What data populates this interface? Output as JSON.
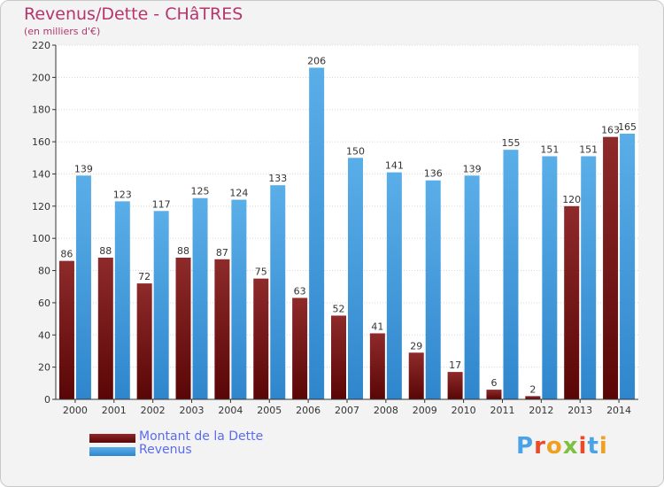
{
  "chart_data": {
    "type": "bar",
    "title": "Revenus/Dette - CHâTRES",
    "subtitle": "(en milliers d'€)",
    "xlabel": "",
    "ylabel": "",
    "categories": [
      "2000",
      "2001",
      "2002",
      "2003",
      "2004",
      "2005",
      "2006",
      "2007",
      "2008",
      "2009",
      "2010",
      "2011",
      "2012",
      "2013",
      "2014"
    ],
    "series": [
      {
        "name": "Montant de la Dette",
        "values": [
          86,
          88,
          72,
          88,
          87,
          75,
          63,
          52,
          41,
          29,
          17,
          6,
          2,
          120,
          163
        ],
        "color": "#7a1a1a"
      },
      {
        "name": "Revenus",
        "values": [
          139,
          123,
          117,
          125,
          124,
          133,
          206,
          150,
          141,
          136,
          139,
          155,
          151,
          151,
          165
        ],
        "color": "#4aa3e6"
      }
    ],
    "ylim": [
      0,
      220
    ],
    "yticks": [
      0,
      20,
      40,
      60,
      80,
      100,
      120,
      140,
      160,
      180,
      200,
      220
    ],
    "grid": true,
    "legend": "bottom-left"
  },
  "logo": {
    "text": "Proxiti",
    "colors": [
      "#4aa3e6",
      "#e84a2a",
      "#f0a020",
      "#7fc040",
      "#e84a2a",
      "#4aa3e6",
      "#f0a020"
    ]
  }
}
